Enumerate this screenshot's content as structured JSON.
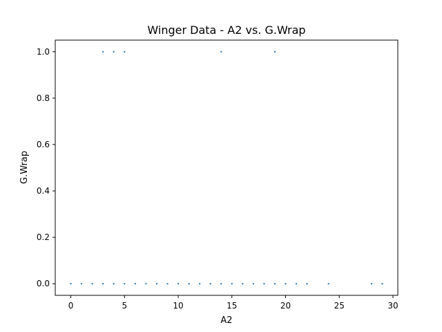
{
  "chart_data": {
    "type": "scatter",
    "title": "Winger Data - A2 vs. G.Wrap",
    "xlabel": "A2",
    "ylabel": "G.Wrap",
    "xlim": [
      -1.45,
      30.45
    ],
    "ylim": [
      -0.05,
      1.05
    ],
    "xticks": [
      0,
      5,
      10,
      15,
      20,
      25,
      30
    ],
    "yticks": [
      0.0,
      0.2,
      0.4,
      0.6,
      0.8,
      1.0
    ],
    "xtick_labels": [
      "0",
      "5",
      "10",
      "15",
      "20",
      "25",
      "30"
    ],
    "ytick_labels": [
      "0.0",
      "0.2",
      "0.4",
      "0.6",
      "0.8",
      "1.0"
    ],
    "grid": false,
    "legend": "none",
    "point_color": "#1f77b4",
    "points": [
      [
        0,
        0
      ],
      [
        1,
        0
      ],
      [
        2,
        0
      ],
      [
        3,
        0
      ],
      [
        4,
        0
      ],
      [
        5,
        0
      ],
      [
        6,
        0
      ],
      [
        7,
        0
      ],
      [
        8,
        0
      ],
      [
        9,
        0
      ],
      [
        10,
        0
      ],
      [
        11,
        0
      ],
      [
        12,
        0
      ],
      [
        13,
        0
      ],
      [
        14,
        0
      ],
      [
        15,
        0
      ],
      [
        16,
        0
      ],
      [
        17,
        0
      ],
      [
        18,
        0
      ],
      [
        19,
        0
      ],
      [
        20,
        0
      ],
      [
        21,
        0
      ],
      [
        22,
        0
      ],
      [
        24,
        0
      ],
      [
        28,
        0
      ],
      [
        29,
        0
      ],
      [
        3,
        1
      ],
      [
        4,
        1
      ],
      [
        5,
        1
      ],
      [
        14,
        1
      ],
      [
        19,
        1
      ]
    ]
  }
}
